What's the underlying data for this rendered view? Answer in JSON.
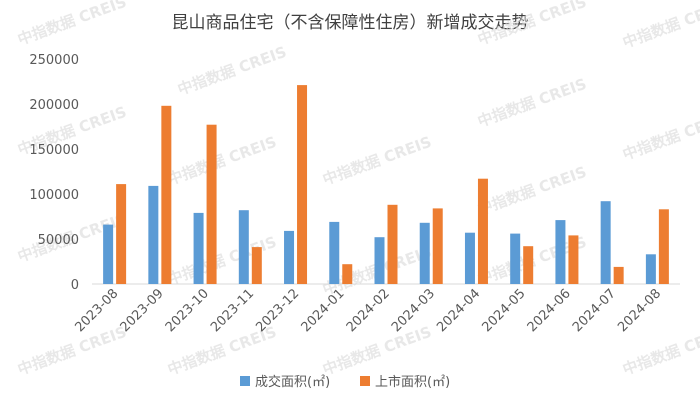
{
  "chart_data": {
    "type": "bar",
    "title": "昆山商品住宅（不含保障性住房）新增成交走势",
    "watermark": "中指数据 CREIS",
    "categories": [
      "2023-08",
      "2023-09",
      "2023-10",
      "2023-11",
      "2023-12",
      "2024-01",
      "2024-02",
      "2024-03",
      "2024-04",
      "2024-05",
      "2024-06",
      "2024-07",
      "2024-08"
    ],
    "series": [
      {
        "name": "成交面积(㎡)",
        "color": "#5b9bd5",
        "values": [
          66000,
          109000,
          79000,
          82000,
          59000,
          69000,
          52000,
          68000,
          57000,
          56000,
          71000,
          92000,
          33000
        ]
      },
      {
        "name": "上市面积(㎡)",
        "color": "#ed7d31",
        "values": [
          111000,
          198000,
          177000,
          41000,
          221000,
          22000,
          88000,
          84000,
          117000,
          42000,
          54000,
          19000,
          83000
        ]
      }
    ],
    "ylim": [
      0,
      250000
    ],
    "yticks": [
      "0",
      "50000",
      "100000",
      "150000",
      "200000",
      "250000"
    ],
    "grid": false,
    "legend_position": "bottom"
  }
}
